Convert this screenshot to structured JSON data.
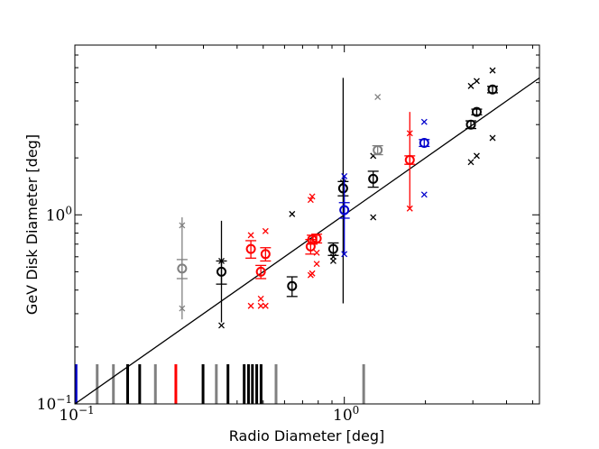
{
  "chart_data": {
    "type": "scatter",
    "xlabel": "Radio Diameter [deg]",
    "ylabel": "GeV Disk Diameter [deg]",
    "xscale": "log",
    "yscale": "log",
    "xlim": [
      0.1,
      5.3
    ],
    "ylim": [
      0.1,
      7.9
    ],
    "grid": false,
    "x_tick_labels": [
      {
        "value": 0.1,
        "base": "10",
        "exp": "−1"
      },
      {
        "value": 1.0,
        "base": "10",
        "exp": "0"
      }
    ],
    "y_tick_labels": [
      {
        "value": 0.1,
        "base": "10",
        "exp": "−1"
      },
      {
        "value": 1.0,
        "base": "10",
        "exp": "0"
      }
    ],
    "reference_line": {
      "slope": 1,
      "color": "#000000"
    },
    "colors": {
      "black": "#000000",
      "gray": "#808080",
      "red": "#ff0000",
      "blue": "#0000cc"
    },
    "points": [
      {
        "x": 0.25,
        "y": 0.52,
        "ylo": 0.28,
        "yhi": 0.97,
        "err": 0.06,
        "xs": [
          0.88,
          0.32
        ],
        "color": "gray"
      },
      {
        "x": 0.35,
        "y": 0.5,
        "ylo": 0.27,
        "yhi": 0.93,
        "err": 0.07,
        "xs": [
          0.57,
          0.26
        ],
        "color": "black"
      },
      {
        "x": 0.45,
        "y": 0.66,
        "ylo": null,
        "yhi": null,
        "err": 0.07,
        "xs": [
          0.78,
          0.33
        ],
        "color": "red"
      },
      {
        "x": 0.49,
        "y": 0.5,
        "ylo": null,
        "yhi": null,
        "err": 0.04,
        "xs": [
          0.36,
          0.33
        ],
        "color": "red"
      },
      {
        "x": 0.51,
        "y": 0.62,
        "ylo": null,
        "yhi": null,
        "err": 0.05,
        "xs": [
          0.82,
          0.33
        ],
        "color": "red"
      },
      {
        "x": 0.64,
        "y": 0.42,
        "ylo": null,
        "yhi": null,
        "err": 0.05,
        "xs": [
          1.01
        ],
        "color": "black"
      },
      {
        "x": 0.75,
        "y": 0.68,
        "ylo": null,
        "yhi": null,
        "err": 0.06,
        "xs": [
          1.2,
          0.48
        ],
        "color": "red"
      },
      {
        "x": 0.76,
        "y": 0.74,
        "ylo": null,
        "yhi": null,
        "err": 0.04,
        "xs": [
          1.25,
          0.49
        ],
        "color": "red"
      },
      {
        "x": 0.79,
        "y": 0.75,
        "ylo": null,
        "yhi": null,
        "err": 0.04,
        "xs": [
          0.63,
          0.55
        ],
        "color": "red"
      },
      {
        "x": 0.91,
        "y": 0.66,
        "ylo": null,
        "yhi": null,
        "err": 0.05,
        "xs": [
          0.6,
          0.57
        ],
        "color": "black"
      },
      {
        "x": 0.99,
        "y": 1.38,
        "ylo": 0.34,
        "yhi": 5.3,
        "err": 0.12,
        "xs": [
          1.48
        ],
        "color": "black"
      },
      {
        "x": 1.0,
        "y": 1.06,
        "ylo": 0.62,
        "yhi": 1.6,
        "err": 0.1,
        "xs": [
          1.6,
          0.62
        ],
        "color": "blue"
      },
      {
        "x": 1.28,
        "y": 1.55,
        "ylo": null,
        "yhi": null,
        "err": 0.15,
        "xs": [
          2.05,
          0.97
        ],
        "color": "black"
      },
      {
        "x": 1.33,
        "y": 2.2,
        "ylo": null,
        "yhi": null,
        "err": 0.12,
        "xs": [
          4.2
        ],
        "color": "gray"
      },
      {
        "x": 1.75,
        "y": 1.95,
        "ylo": 1.08,
        "yhi": 3.5,
        "err": 0.1,
        "xs": [
          2.7,
          1.08
        ],
        "color": "red"
      },
      {
        "x": 1.98,
        "y": 2.4,
        "ylo": null,
        "yhi": null,
        "err": 0.1,
        "xs": [
          3.1,
          1.28
        ],
        "color": "blue"
      },
      {
        "x": 2.95,
        "y": 3.0,
        "ylo": null,
        "yhi": null,
        "err": 0.14,
        "xs": [
          1.9,
          4.8
        ],
        "color": "black"
      },
      {
        "x": 3.1,
        "y": 3.5,
        "ylo": null,
        "yhi": null,
        "err": 0.12,
        "xs": [
          2.05,
          5.1
        ],
        "color": "black"
      },
      {
        "x": 3.55,
        "y": 4.6,
        "ylo": null,
        "yhi": null,
        "err": 0.18,
        "xs": [
          5.8,
          2.55
        ],
        "color": "black"
      }
    ],
    "rug": [
      {
        "x": 0.101,
        "color": "blue"
      },
      {
        "x": 0.121,
        "color": "gray"
      },
      {
        "x": 0.139,
        "color": "gray"
      },
      {
        "x": 0.157,
        "color": "black"
      },
      {
        "x": 0.174,
        "color": "black"
      },
      {
        "x": 0.199,
        "color": "gray"
      },
      {
        "x": 0.237,
        "color": "red"
      },
      {
        "x": 0.299,
        "color": "black"
      },
      {
        "x": 0.335,
        "color": "gray"
      },
      {
        "x": 0.37,
        "color": "black"
      },
      {
        "x": 0.425,
        "color": "black"
      },
      {
        "x": 0.441,
        "color": "black"
      },
      {
        "x": 0.456,
        "color": "black"
      },
      {
        "x": 0.473,
        "color": "black"
      },
      {
        "x": 0.491,
        "color": "black"
      },
      {
        "x": 0.558,
        "color": "gray"
      },
      {
        "x": 1.18,
        "color": "gray"
      }
    ]
  }
}
